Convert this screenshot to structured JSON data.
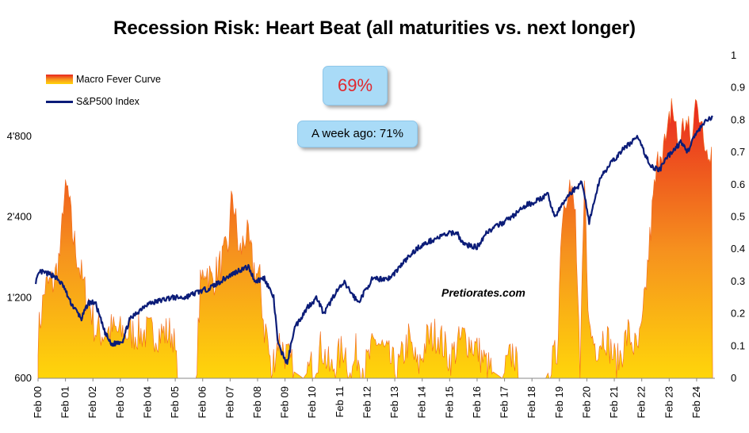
{
  "title": "Recession Risk: Heart Beat (all maturities vs. next longer)",
  "current_badge": "69%",
  "week_ago_badge": "A week ago: 71%",
  "watermark": "Pretiorates.com",
  "colors": {
    "sp500_line": "#0b1c78",
    "fever_top": "#e8251f",
    "fever_mid": "#f6921e",
    "fever_bottom": "#ffd60a",
    "badge_fill": "#a9dbf7",
    "badge_value_text": "#e0282e"
  },
  "chart_data": {
    "type": "area",
    "x_tick_labels": [
      "Feb 00",
      "Feb 01",
      "Feb 02",
      "Feb 03",
      "Feb 04",
      "Feb 05",
      "Feb 06",
      "Feb 07",
      "Feb 08",
      "Feb 09",
      "Feb 10",
      "Feb 11",
      "Feb 12",
      "Feb 13",
      "Feb 14",
      "Feb 15",
      "Feb 16",
      "Feb 17",
      "Feb 18",
      "Feb 19",
      "Feb 20",
      "Feb 21",
      "Feb 22",
      "Feb 23",
      "Feb 24"
    ],
    "y_left": {
      "scale": "log",
      "ticks": [
        600,
        1200,
        2400,
        4800
      ],
      "tick_labels": [
        "600",
        "1'200",
        "2'400",
        "4'800"
      ],
      "range": [
        600,
        9600
      ]
    },
    "y_right": {
      "scale": "linear",
      "ticks": [
        0,
        0.1,
        0.2,
        0.3,
        0.4,
        0.5,
        0.6,
        0.7,
        0.8,
        0.9,
        1
      ],
      "tick_labels": [
        "0",
        "0.1",
        "0.2",
        "0.3",
        "0.4",
        "0.5",
        "0.6",
        "0.7",
        "0.8",
        "0.9",
        "1"
      ],
      "range": [
        0,
        1
      ]
    },
    "grid": false,
    "legend_position": "top-left",
    "series": [
      {
        "name": "Macro Fever Curve",
        "axis": "right",
        "kind": "area",
        "points": [
          [
            "2000-02",
            0.13
          ],
          [
            "2000-05",
            0.28
          ],
          [
            "2000-09",
            0.3
          ],
          [
            "2000-12",
            0.4
          ],
          [
            "2001-01",
            0.55
          ],
          [
            "2001-03",
            0.58
          ],
          [
            "2001-05",
            0.45
          ],
          [
            "2001-08",
            0.35
          ],
          [
            "2001-10",
            0.28
          ],
          [
            "2002-01",
            0.22
          ],
          [
            "2002-03",
            0.15
          ],
          [
            "2002-06",
            0.14
          ],
          [
            "2002-10",
            0.15
          ],
          [
            "2003-02",
            0.14
          ],
          [
            "2003-06",
            0.14
          ],
          [
            "2003-10",
            0.14
          ],
          [
            "2004-02",
            0.14
          ],
          [
            "2004-06",
            0.14
          ],
          [
            "2004-10",
            0.14
          ],
          [
            "2005-01",
            0.14
          ],
          [
            "2005-03",
            0.0
          ],
          [
            "2005-11",
            0.0
          ],
          [
            "2006-01",
            0.28
          ],
          [
            "2006-03",
            0.35
          ],
          [
            "2006-06",
            0.3
          ],
          [
            "2006-09",
            0.34
          ],
          [
            "2007-01",
            0.4
          ],
          [
            "2007-03",
            0.58
          ],
          [
            "2007-06",
            0.38
          ],
          [
            "2007-09",
            0.45
          ],
          [
            "2007-12",
            0.35
          ],
          [
            "2008-03",
            0.3
          ],
          [
            "2008-05",
            0.15
          ],
          [
            "2008-06",
            0.15
          ],
          [
            "2008-08",
            0.0
          ],
          [
            "2008-09",
            0.06
          ],
          [
            "2008-11",
            0.12
          ],
          [
            "2009-02",
            0.08
          ],
          [
            "2009-06",
            0.02
          ],
          [
            "2009-10",
            0.0
          ],
          [
            "2010-03",
            0.05
          ],
          [
            "2010-06",
            0.1
          ],
          [
            "2010-10",
            0.02
          ],
          [
            "2011-04",
            0.1
          ],
          [
            "2011-07",
            0.0
          ],
          [
            "2011-09",
            0.08
          ],
          [
            "2012-01",
            0.03
          ],
          [
            "2012-06",
            0.12
          ],
          [
            "2013-03",
            0.02
          ],
          [
            "2013-08",
            0.12
          ],
          [
            "2013-12",
            0.03
          ],
          [
            "2014-04",
            0.12
          ],
          [
            "2014-09",
            0.14
          ],
          [
            "2015-02",
            0.06
          ],
          [
            "2015-08",
            0.13
          ],
          [
            "2016-01",
            0.1
          ],
          [
            "2016-07",
            0.03
          ],
          [
            "2017-01",
            0.0
          ],
          [
            "2017-06",
            0.09
          ],
          [
            "2017-08",
            0.0
          ],
          [
            "2018-08",
            0.0
          ],
          [
            "2019-01",
            0.08
          ],
          [
            "2019-03",
            0.5
          ],
          [
            "2019-06",
            0.62
          ],
          [
            "2019-09",
            0.5
          ],
          [
            "2019-11",
            0.0
          ],
          [
            "2020-01",
            0.6
          ],
          [
            "2020-03",
            0.15
          ],
          [
            "2020-06",
            0.1
          ],
          [
            "2020-10",
            0.14
          ],
          [
            "2021-03",
            0.04
          ],
          [
            "2021-08",
            0.14
          ],
          [
            "2021-12",
            0.08
          ],
          [
            "2022-02",
            0.14
          ],
          [
            "2022-04",
            0.3
          ],
          [
            "2022-07",
            0.55
          ],
          [
            "2022-10",
            0.72
          ],
          [
            "2023-01",
            0.72
          ],
          [
            "2023-03",
            0.86
          ],
          [
            "2023-06",
            0.72
          ],
          [
            "2023-09",
            0.8
          ],
          [
            "2023-12",
            0.72
          ],
          [
            "2024-02",
            0.9
          ],
          [
            "2024-05",
            0.72
          ],
          [
            "2024-09",
            0.72
          ]
        ]
      },
      {
        "name": "S&P500 Index",
        "axis": "left",
        "kind": "line",
        "points": [
          [
            "2000-01",
            1380
          ],
          [
            "2000-03",
            1500
          ],
          [
            "2000-09",
            1450
          ],
          [
            "2001-01",
            1330
          ],
          [
            "2001-04",
            1160
          ],
          [
            "2001-09",
            1000
          ],
          [
            "2001-12",
            1150
          ],
          [
            "2002-03",
            1150
          ],
          [
            "2002-07",
            900
          ],
          [
            "2002-10",
            800
          ],
          [
            "2003-03",
            830
          ],
          [
            "2003-06",
            990
          ],
          [
            "2004-01",
            1130
          ],
          [
            "2004-12",
            1200
          ],
          [
            "2005-06",
            1200
          ],
          [
            "2005-12",
            1260
          ],
          [
            "2006-05",
            1300
          ],
          [
            "2006-12",
            1420
          ],
          [
            "2007-06",
            1520
          ],
          [
            "2007-10",
            1560
          ],
          [
            "2008-01",
            1380
          ],
          [
            "2008-05",
            1420
          ],
          [
            "2008-09",
            1200
          ],
          [
            "2008-11",
            800
          ],
          [
            "2009-03",
            680
          ],
          [
            "2009-06",
            920
          ],
          [
            "2009-12",
            1110
          ],
          [
            "2010-04",
            1200
          ],
          [
            "2010-07",
            1040
          ],
          [
            "2010-12",
            1250
          ],
          [
            "2011-04",
            1360
          ],
          [
            "2011-10",
            1150
          ],
          [
            "2012-04",
            1400
          ],
          [
            "2012-12",
            1420
          ],
          [
            "2013-06",
            1630
          ],
          [
            "2013-12",
            1840
          ],
          [
            "2014-06",
            1960
          ],
          [
            "2014-12",
            2060
          ],
          [
            "2015-05",
            2110
          ],
          [
            "2015-08",
            1900
          ],
          [
            "2016-02",
            1850
          ],
          [
            "2016-06",
            2100
          ],
          [
            "2016-12",
            2250
          ],
          [
            "2017-06",
            2430
          ],
          [
            "2017-12",
            2670
          ],
          [
            "2018-02",
            2700
          ],
          [
            "2018-09",
            2900
          ],
          [
            "2018-12",
            2400
          ],
          [
            "2019-06",
            2900
          ],
          [
            "2019-12",
            3230
          ],
          [
            "2020-03",
            2300
          ],
          [
            "2020-08",
            3400
          ],
          [
            "2020-12",
            3750
          ],
          [
            "2021-06",
            4300
          ],
          [
            "2021-12",
            4770
          ],
          [
            "2022-06",
            3700
          ],
          [
            "2022-10",
            3600
          ],
          [
            "2023-01",
            4000
          ],
          [
            "2023-07",
            4550
          ],
          [
            "2023-10",
            4200
          ],
          [
            "2024-01",
            4800
          ],
          [
            "2024-06",
            5450
          ],
          [
            "2024-09",
            5650
          ]
        ]
      }
    ]
  }
}
